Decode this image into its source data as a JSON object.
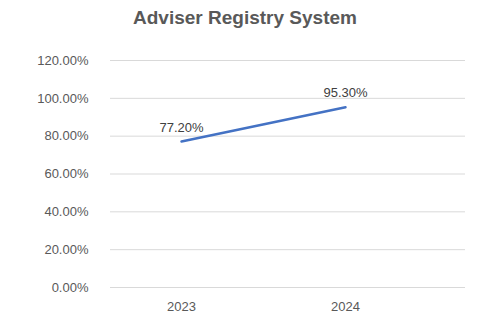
{
  "chart_data": {
    "type": "line",
    "title": "Adviser Registry System",
    "categories": [
      "2023",
      "2024"
    ],
    "values": [
      77.2,
      95.3
    ],
    "value_labels": [
      "77.20%",
      "95.30%"
    ],
    "data_labels": true,
    "color": "#4472c4",
    "marker": "none",
    "ylim": [
      0,
      120
    ],
    "yticks": [
      {
        "value": 0,
        "label": "0.00%"
      },
      {
        "value": 20,
        "label": "20.00%"
      },
      {
        "value": 40,
        "label": "40.00%"
      },
      {
        "value": 60,
        "label": "60.00%"
      },
      {
        "value": 80,
        "label": "80.00%"
      },
      {
        "value": 100,
        "label": "100.00%"
      },
      {
        "value": 120,
        "label": "120.00%"
      }
    ],
    "grid": true
  }
}
